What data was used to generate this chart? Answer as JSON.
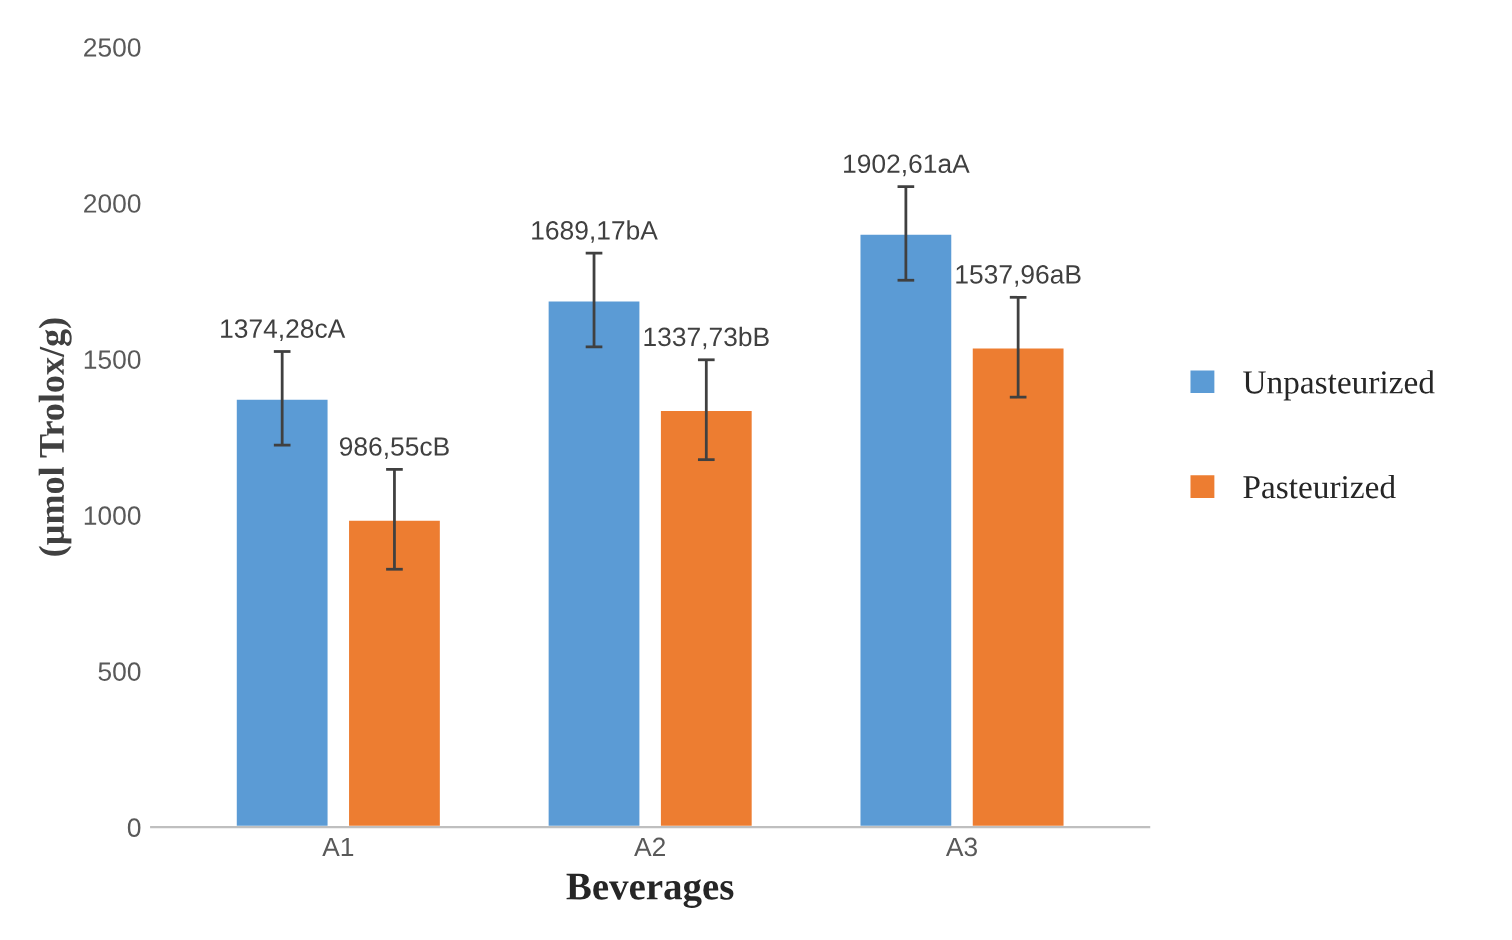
{
  "chart_data": {
    "type": "bar",
    "xlabel": "Beverages",
    "ylabel": "(µmol Trolox/g)",
    "categories": [
      "A1",
      "A2",
      "A3"
    ],
    "series": [
      {
        "name": "Unpasteurized",
        "color": "#5b9bd5",
        "values": [
          1374.28,
          1689.17,
          1902.61
        ],
        "errors": [
          150,
          150,
          150
        ],
        "value_labels": [
          "1374,28cA",
          "1689,17bA",
          "1902,61aA"
        ]
      },
      {
        "name": "Pasteurized",
        "color": "#ed7d31",
        "values": [
          986.55,
          1337.73,
          1537.96
        ],
        "errors": [
          160,
          160,
          160
        ],
        "value_labels": [
          "986,55cB",
          "1337,73bB",
          "1537,96aB"
        ]
      }
    ],
    "ylim": [
      0,
      2500
    ],
    "yticks": [
      0,
      500,
      1000,
      1500,
      2000,
      2500
    ],
    "grid": false,
    "legend": "right"
  }
}
